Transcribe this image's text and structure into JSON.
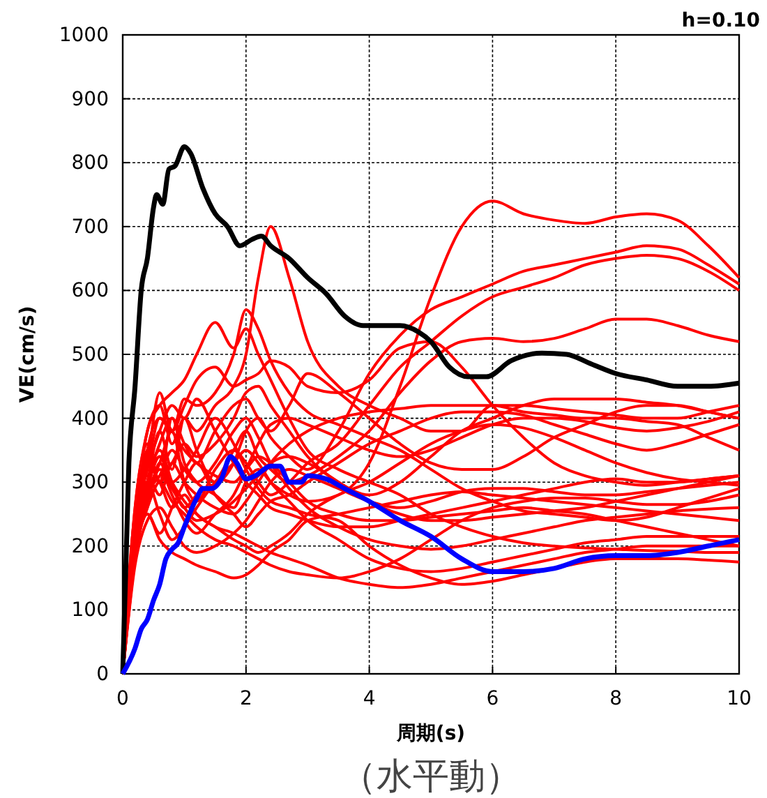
{
  "chart_data": {
    "type": "line",
    "xlabel": "周期(s)",
    "ylabel": "VE(cm/s)",
    "xlim": [
      0,
      10
    ],
    "xticks": [
      0,
      2,
      4,
      6,
      8,
      10
    ],
    "ylim": [
      0,
      1000
    ],
    "yticks": [
      0,
      100,
      200,
      300,
      400,
      500,
      600,
      700,
      800,
      900,
      1000
    ],
    "grid": true,
    "marker": "none",
    "line_style": "solid",
    "annotations": [
      "h=0.10",
      "（水平動）"
    ],
    "x": [
      0,
      0.2,
      0.4,
      0.6,
      0.8,
      1,
      1.2,
      1.5,
      1.8,
      2,
      2.2,
      2.4,
      2.7,
      3,
      3.5,
      4,
      4.5,
      5,
      5.5,
      6,
      6.5,
      7,
      7.5,
      8,
      8.5,
      9,
      9.5,
      10
    ],
    "series": [
      {
        "color": "#ff0000",
        "values": [
          0,
          200,
          350,
          300,
          400,
          330,
          300,
          280,
          260,
          300,
          320,
          300,
          280,
          270,
          280,
          330,
          450,
          590,
          700,
          740,
          720,
          710,
          705,
          715,
          720,
          710,
          670,
          620
        ]
      },
      {
        "color": "#ff0000",
        "values": [
          0,
          220,
          300,
          380,
          320,
          400,
          350,
          300,
          330,
          380,
          400,
          370,
          340,
          320,
          380,
          470,
          530,
          570,
          590,
          610,
          630,
          640,
          650,
          660,
          670,
          665,
          640,
          610
        ]
      },
      {
        "color": "#ff0000",
        "values": [
          0,
          180,
          280,
          330,
          380,
          300,
          270,
          320,
          350,
          330,
          300,
          280,
          300,
          330,
          360,
          420,
          480,
          520,
          560,
          590,
          605,
          620,
          640,
          650,
          655,
          650,
          630,
          600
        ]
      },
      {
        "color": "#ff0000",
        "values": [
          0,
          240,
          380,
          420,
          360,
          400,
          380,
          420,
          450,
          500,
          620,
          700,
          620,
          520,
          450,
          420,
          400,
          380,
          380,
          420,
          410,
          405,
          400,
          400,
          395,
          390,
          370,
          350
        ]
      },
      {
        "color": "#ff0000",
        "values": [
          0,
          200,
          300,
          350,
          300,
          260,
          280,
          300,
          350,
          380,
          340,
          320,
          300,
          310,
          340,
          380,
          440,
          490,
          520,
          525,
          520,
          525,
          540,
          555,
          555,
          545,
          530,
          520
        ]
      },
      {
        "color": "#ff0000",
        "values": [
          0,
          230,
          320,
          400,
          380,
          430,
          420,
          440,
          500,
          570,
          540,
          490,
          440,
          410,
          390,
          370,
          350,
          320,
          290,
          270,
          255,
          250,
          245,
          240,
          245,
          260,
          275,
          290
        ]
      },
      {
        "color": "#ff0000",
        "values": [
          0,
          260,
          380,
          420,
          440,
          460,
          500,
          550,
          510,
          540,
          500,
          460,
          400,
          350,
          320,
          300,
          280,
          250,
          230,
          215,
          205,
          200,
          197,
          195,
          193,
          192,
          190,
          190
        ]
      },
      {
        "color": "#ff0000",
        "values": [
          0,
          210,
          330,
          440,
          380,
          420,
          460,
          480,
          450,
          460,
          470,
          490,
          480,
          450,
          440,
          460,
          510,
          520,
          480,
          420,
          370,
          330,
          310,
          300,
          295,
          300,
          305,
          310
        ]
      },
      {
        "color": "#ff0000",
        "values": [
          0,
          190,
          300,
          360,
          400,
          360,
          330,
          380,
          420,
          430,
          400,
          380,
          420,
          470,
          440,
          400,
          360,
          330,
          320,
          320,
          340,
          370,
          390,
          410,
          420,
          420,
          410,
          400
        ]
      },
      {
        "color": "#ff0000",
        "values": [
          0,
          250,
          310,
          280,
          330,
          300,
          280,
          260,
          250,
          270,
          300,
          330,
          360,
          380,
          400,
          410,
          415,
          420,
          420,
          420,
          420,
          415,
          410,
          405,
          400,
          400,
          410,
          420
        ]
      },
      {
        "color": "#ff0000",
        "values": [
          0,
          200,
          270,
          320,
          280,
          240,
          220,
          250,
          280,
          320,
          360,
          390,
          400,
          390,
          370,
          350,
          340,
          350,
          370,
          390,
          400,
          400,
          395,
          385,
          380,
          385,
          395,
          410
        ]
      },
      {
        "color": "#ff0000",
        "values": [
          0,
          180,
          250,
          220,
          260,
          300,
          330,
          280,
          250,
          230,
          250,
          270,
          280,
          300,
          330,
          360,
          380,
          400,
          410,
          410,
          405,
          390,
          375,
          360,
          350,
          360,
          375,
          390
        ]
      },
      {
        "color": "#ff0000",
        "values": [
          0,
          220,
          330,
          300,
          260,
          280,
          250,
          230,
          210,
          200,
          190,
          200,
          220,
          250,
          280,
          300,
          330,
          360,
          380,
          390,
          385,
          370,
          350,
          330,
          315,
          305,
          300,
          295
        ]
      },
      {
        "color": "#ff0000",
        "values": [
          0,
          170,
          240,
          260,
          230,
          200,
          190,
          200,
          220,
          240,
          270,
          300,
          320,
          310,
          290,
          270,
          260,
          270,
          285,
          290,
          290,
          285,
          280,
          280,
          285,
          290,
          295,
          300
        ]
      },
      {
        "color": "#ff0000",
        "values": [
          0,
          200,
          260,
          300,
          270,
          250,
          230,
          210,
          200,
          190,
          180,
          170,
          160,
          155,
          150,
          160,
          180,
          210,
          240,
          260,
          270,
          275,
          275,
          270,
          265,
          265,
          270,
          280
        ]
      },
      {
        "color": "#ff0000",
        "values": [
          0,
          190,
          280,
          310,
          350,
          320,
          300,
          330,
          380,
          400,
          370,
          330,
          290,
          260,
          230,
          210,
          200,
          195,
          200,
          210,
          220,
          230,
          240,
          245,
          250,
          255,
          258,
          260
        ]
      },
      {
        "color": "#ff0000",
        "values": [
          0,
          230,
          300,
          250,
          210,
          230,
          260,
          300,
          330,
          350,
          330,
          300,
          270,
          240,
          210,
          180,
          165,
          160,
          165,
          175,
          185,
          195,
          205,
          210,
          215,
          215,
          215,
          215
        ]
      },
      {
        "color": "#ff0000",
        "values": [
          0,
          210,
          290,
          340,
          300,
          270,
          250,
          230,
          220,
          210,
          200,
          190,
          180,
          170,
          150,
          140,
          135,
          140,
          150,
          160,
          170,
          180,
          190,
          195,
          200,
          200,
          200,
          200
        ]
      },
      {
        "color": "#ff0000",
        "values": [
          0,
          180,
          250,
          210,
          190,
          180,
          170,
          160,
          150,
          155,
          170,
          190,
          210,
          240,
          250,
          260,
          270,
          280,
          285,
          280,
          275,
          270,
          265,
          260,
          255,
          250,
          245,
          240
        ]
      },
      {
        "color": "#ff0000",
        "values": [
          0,
          240,
          320,
          380,
          420,
          400,
          430,
          380,
          330,
          300,
          280,
          260,
          250,
          240,
          230,
          230,
          240,
          250,
          260,
          270,
          280,
          290,
          300,
          305,
          300,
          300,
          305,
          310
        ]
      },
      {
        "color": "#ff0000",
        "values": [
          0,
          200,
          350,
          400,
          380,
          350,
          330,
          310,
          300,
          320,
          340,
          330,
          300,
          270,
          250,
          240,
          240,
          245,
          250,
          255,
          260,
          255,
          250,
          240,
          230,
          220,
          210,
          200
        ]
      },
      {
        "color": "#ff0000",
        "values": [
          0,
          260,
          360,
          300,
          330,
          360,
          340,
          360,
          400,
          440,
          450,
          420,
          380,
          340,
          300,
          280,
          300,
          340,
          380,
          400,
          420,
          430,
          430,
          430,
          425,
          420,
          410,
          400
        ]
      },
      {
        "color": "#ff0000",
        "values": [
          0,
          220,
          300,
          340,
          300,
          320,
          350,
          400,
          360,
          320,
          290,
          270,
          260,
          250,
          240,
          200,
          170,
          150,
          140,
          145,
          155,
          165,
          175,
          180,
          180,
          180,
          178,
          175
        ]
      },
      {
        "color": "#ff0000",
        "values": [
          0,
          190,
          260,
          330,
          290,
          260,
          240,
          250,
          270,
          290,
          310,
          330,
          340,
          330,
          300,
          270,
          250,
          240,
          240,
          245,
          250,
          255,
          260,
          270,
          280,
          290,
          300,
          310
        ]
      },
      {
        "color": "#000000",
        "x": [
          0,
          0.1,
          0.2,
          0.3,
          0.4,
          0.5,
          0.55,
          0.65,
          0.75,
          0.85,
          1,
          1.1,
          1.3,
          1.5,
          1.7,
          1.9,
          2.1,
          2.25,
          2.4,
          2.7,
          3,
          3.3,
          3.6,
          3.9,
          4.2,
          4.5,
          4.8,
          5,
          5.3,
          5.6,
          5.9,
          6.3,
          6.8,
          7.2,
          7.6,
          8,
          8.5,
          9,
          9.5,
          10
        ],
        "values": [
          0,
          330,
          450,
          600,
          650,
          730,
          750,
          735,
          790,
          795,
          825,
          815,
          760,
          720,
          700,
          670,
          680,
          685,
          670,
          650,
          620,
          595,
          560,
          545,
          545,
          545,
          535,
          520,
          480,
          465,
          465,
          490,
          502,
          500,
          485,
          470,
          460,
          450,
          450,
          455
        ]
      },
      {
        "color": "#0000ff",
        "x": [
          0,
          0.2,
          0.3,
          0.4,
          0.5,
          0.6,
          0.7,
          0.8,
          0.9,
          1,
          1.2,
          1.3,
          1.45,
          1.6,
          1.75,
          1.85,
          2,
          2.15,
          2.4,
          2.55,
          2.7,
          2.9,
          3,
          3.3,
          3.6,
          4,
          4.5,
          5,
          5.5,
          6,
          6.5,
          7,
          7.5,
          8,
          8.5,
          9,
          9.5,
          10
        ],
        "values": [
          0,
          40,
          70,
          85,
          115,
          140,
          180,
          195,
          205,
          230,
          275,
          290,
          290,
          305,
          340,
          330,
          305,
          310,
          325,
          325,
          300,
          300,
          310,
          305,
          290,
          270,
          240,
          215,
          180,
          160,
          160,
          165,
          180,
          185,
          185,
          190,
          200,
          210
        ]
      }
    ]
  }
}
